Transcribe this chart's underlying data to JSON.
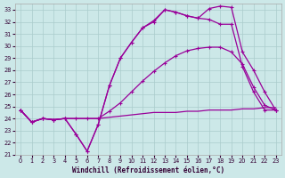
{
  "bg_color": "#cce8e8",
  "grid_color": "#aacccc",
  "line_color": "#990099",
  "xlabel": "Windchill (Refroidissement éolien,°C)",
  "xlim": [
    -0.5,
    23.5
  ],
  "ylim": [
    21,
    33.5
  ],
  "yticks": [
    21,
    22,
    23,
    24,
    25,
    26,
    27,
    28,
    29,
    30,
    31,
    32,
    33
  ],
  "xticks": [
    0,
    1,
    2,
    3,
    4,
    5,
    6,
    7,
    8,
    9,
    10,
    11,
    12,
    13,
    14,
    15,
    16,
    17,
    18,
    19,
    20,
    21,
    22,
    23
  ],
  "series": [
    {
      "x": [
        0,
        1,
        2,
        3,
        4,
        5,
        6,
        7,
        8,
        9,
        10,
        11,
        12,
        13,
        14,
        15,
        16,
        17,
        18,
        19,
        20,
        21,
        22,
        23
      ],
      "y": [
        24.7,
        23.7,
        24.0,
        23.9,
        24.0,
        24.0,
        24.0,
        24.0,
        24.1,
        24.2,
        24.3,
        24.4,
        24.5,
        24.5,
        24.5,
        24.6,
        24.6,
        24.7,
        24.7,
        24.7,
        24.8,
        24.8,
        24.9,
        24.9
      ],
      "has_marker": false
    },
    {
      "x": [
        0,
        1,
        2,
        3,
        4,
        5,
        6,
        7,
        8,
        9,
        10,
        11,
        12,
        13,
        14,
        15,
        16,
        17,
        18,
        19,
        20,
        21,
        22,
        23
      ],
      "y": [
        24.7,
        23.7,
        24.0,
        23.9,
        24.0,
        24.0,
        24.0,
        24.0,
        24.6,
        25.3,
        26.2,
        27.1,
        27.9,
        28.6,
        29.2,
        29.6,
        29.8,
        29.9,
        29.9,
        29.5,
        28.5,
        26.6,
        25.1,
        24.7
      ],
      "has_marker": true
    },
    {
      "x": [
        0,
        1,
        2,
        3,
        4,
        5,
        6,
        7,
        8,
        9,
        10,
        11,
        12,
        13,
        14,
        15,
        16,
        17,
        18,
        19,
        20,
        21,
        22,
        23
      ],
      "y": [
        24.7,
        23.7,
        24.0,
        23.9,
        24.0,
        22.7,
        21.3,
        23.5,
        26.7,
        29.0,
        30.3,
        31.5,
        32.0,
        33.0,
        32.8,
        32.5,
        32.3,
        32.2,
        31.8,
        31.8,
        28.3,
        26.2,
        24.7,
        24.7
      ],
      "has_marker": true
    },
    {
      "x": [
        0,
        1,
        2,
        3,
        4,
        5,
        6,
        7,
        8,
        9,
        10,
        11,
        12,
        13,
        14,
        15,
        16,
        17,
        18,
        19,
        20,
        21,
        22,
        23
      ],
      "y": [
        24.7,
        23.7,
        24.0,
        23.9,
        24.0,
        22.7,
        21.3,
        23.5,
        26.7,
        29.0,
        30.3,
        31.5,
        32.1,
        33.0,
        32.8,
        32.5,
        32.3,
        33.1,
        33.3,
        33.2,
        29.5,
        28.0,
        26.2,
        24.7
      ],
      "has_marker": true
    }
  ],
  "figsize": [
    3.2,
    2.0
  ],
  "dpi": 100
}
